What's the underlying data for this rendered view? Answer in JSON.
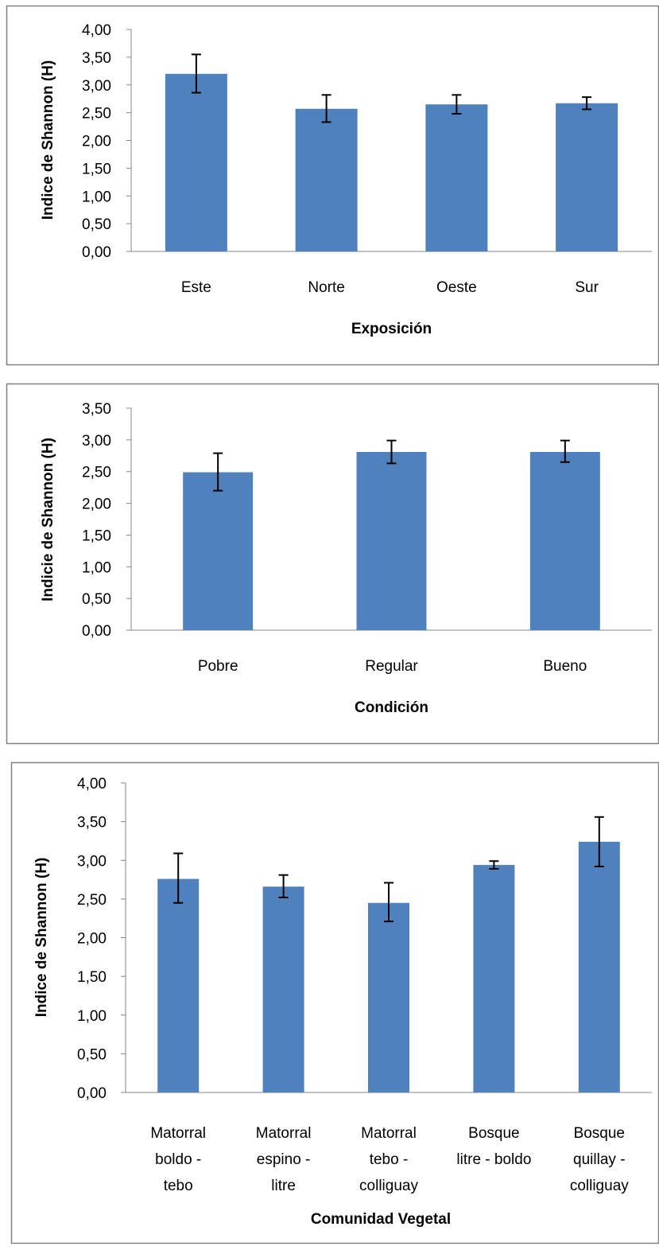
{
  "colors": {
    "bar": "#4f81bd",
    "axis": "#868686",
    "frame": "#808080",
    "error": "#000000"
  },
  "chart_data": [
    {
      "type": "bar",
      "xlabel": "Exposición",
      "ylabel": "Indice de Shannon (H)",
      "ylim": [
        0,
        4
      ],
      "yticks": [
        "0,00",
        "0,50",
        "1,00",
        "1,50",
        "2,00",
        "2,50",
        "3,00",
        "3,50",
        "4,00"
      ],
      "categories": [
        [
          "Este"
        ],
        [
          "Norte"
        ],
        [
          "Oeste"
        ],
        [
          "Sur"
        ]
      ],
      "values": [
        3.2,
        2.57,
        2.65,
        2.67
      ],
      "error_low": [
        2.86,
        2.33,
        2.48,
        2.56
      ],
      "error_high": [
        3.55,
        2.82,
        2.82,
        2.78
      ],
      "grid": false,
      "legend": false
    },
    {
      "type": "bar",
      "xlabel": "Condición",
      "ylabel": "Indicie de Shannon (H)",
      "ylim": [
        0,
        3.5
      ],
      "yticks": [
        "0,00",
        "0,50",
        "1,00",
        "1,50",
        "2,00",
        "2,50",
        "3,00",
        "3,50"
      ],
      "categories": [
        [
          "Pobre"
        ],
        [
          "Regular"
        ],
        [
          "Bueno"
        ]
      ],
      "values": [
        2.49,
        2.81,
        2.81
      ],
      "error_low": [
        2.2,
        2.63,
        2.65
      ],
      "error_high": [
        2.79,
        2.99,
        2.99
      ],
      "grid": false,
      "legend": false
    },
    {
      "type": "bar",
      "xlabel": "Comunidad Vegetal",
      "ylabel": "Indice de Shannon (H)",
      "ylim": [
        0,
        4
      ],
      "yticks": [
        "0,00",
        "0,50",
        "1,00",
        "1,50",
        "2,00",
        "2,50",
        "3,00",
        "3,50",
        "4,00"
      ],
      "categories": [
        [
          "Matorral",
          "boldo -",
          "tebo"
        ],
        [
          "Matorral",
          "espino -",
          "litre"
        ],
        [
          "Matorral",
          "tebo -",
          "colliguay"
        ],
        [
          "Bosque",
          "litre - boldo"
        ],
        [
          "Bosque",
          "quillay -",
          "colliguay"
        ]
      ],
      "values": [
        2.76,
        2.66,
        2.45,
        2.94,
        3.24
      ],
      "error_low": [
        2.45,
        2.52,
        2.21,
        2.89,
        2.92
      ],
      "error_high": [
        3.09,
        2.81,
        2.71,
        2.99,
        3.56
      ],
      "grid": false,
      "legend": false
    }
  ]
}
